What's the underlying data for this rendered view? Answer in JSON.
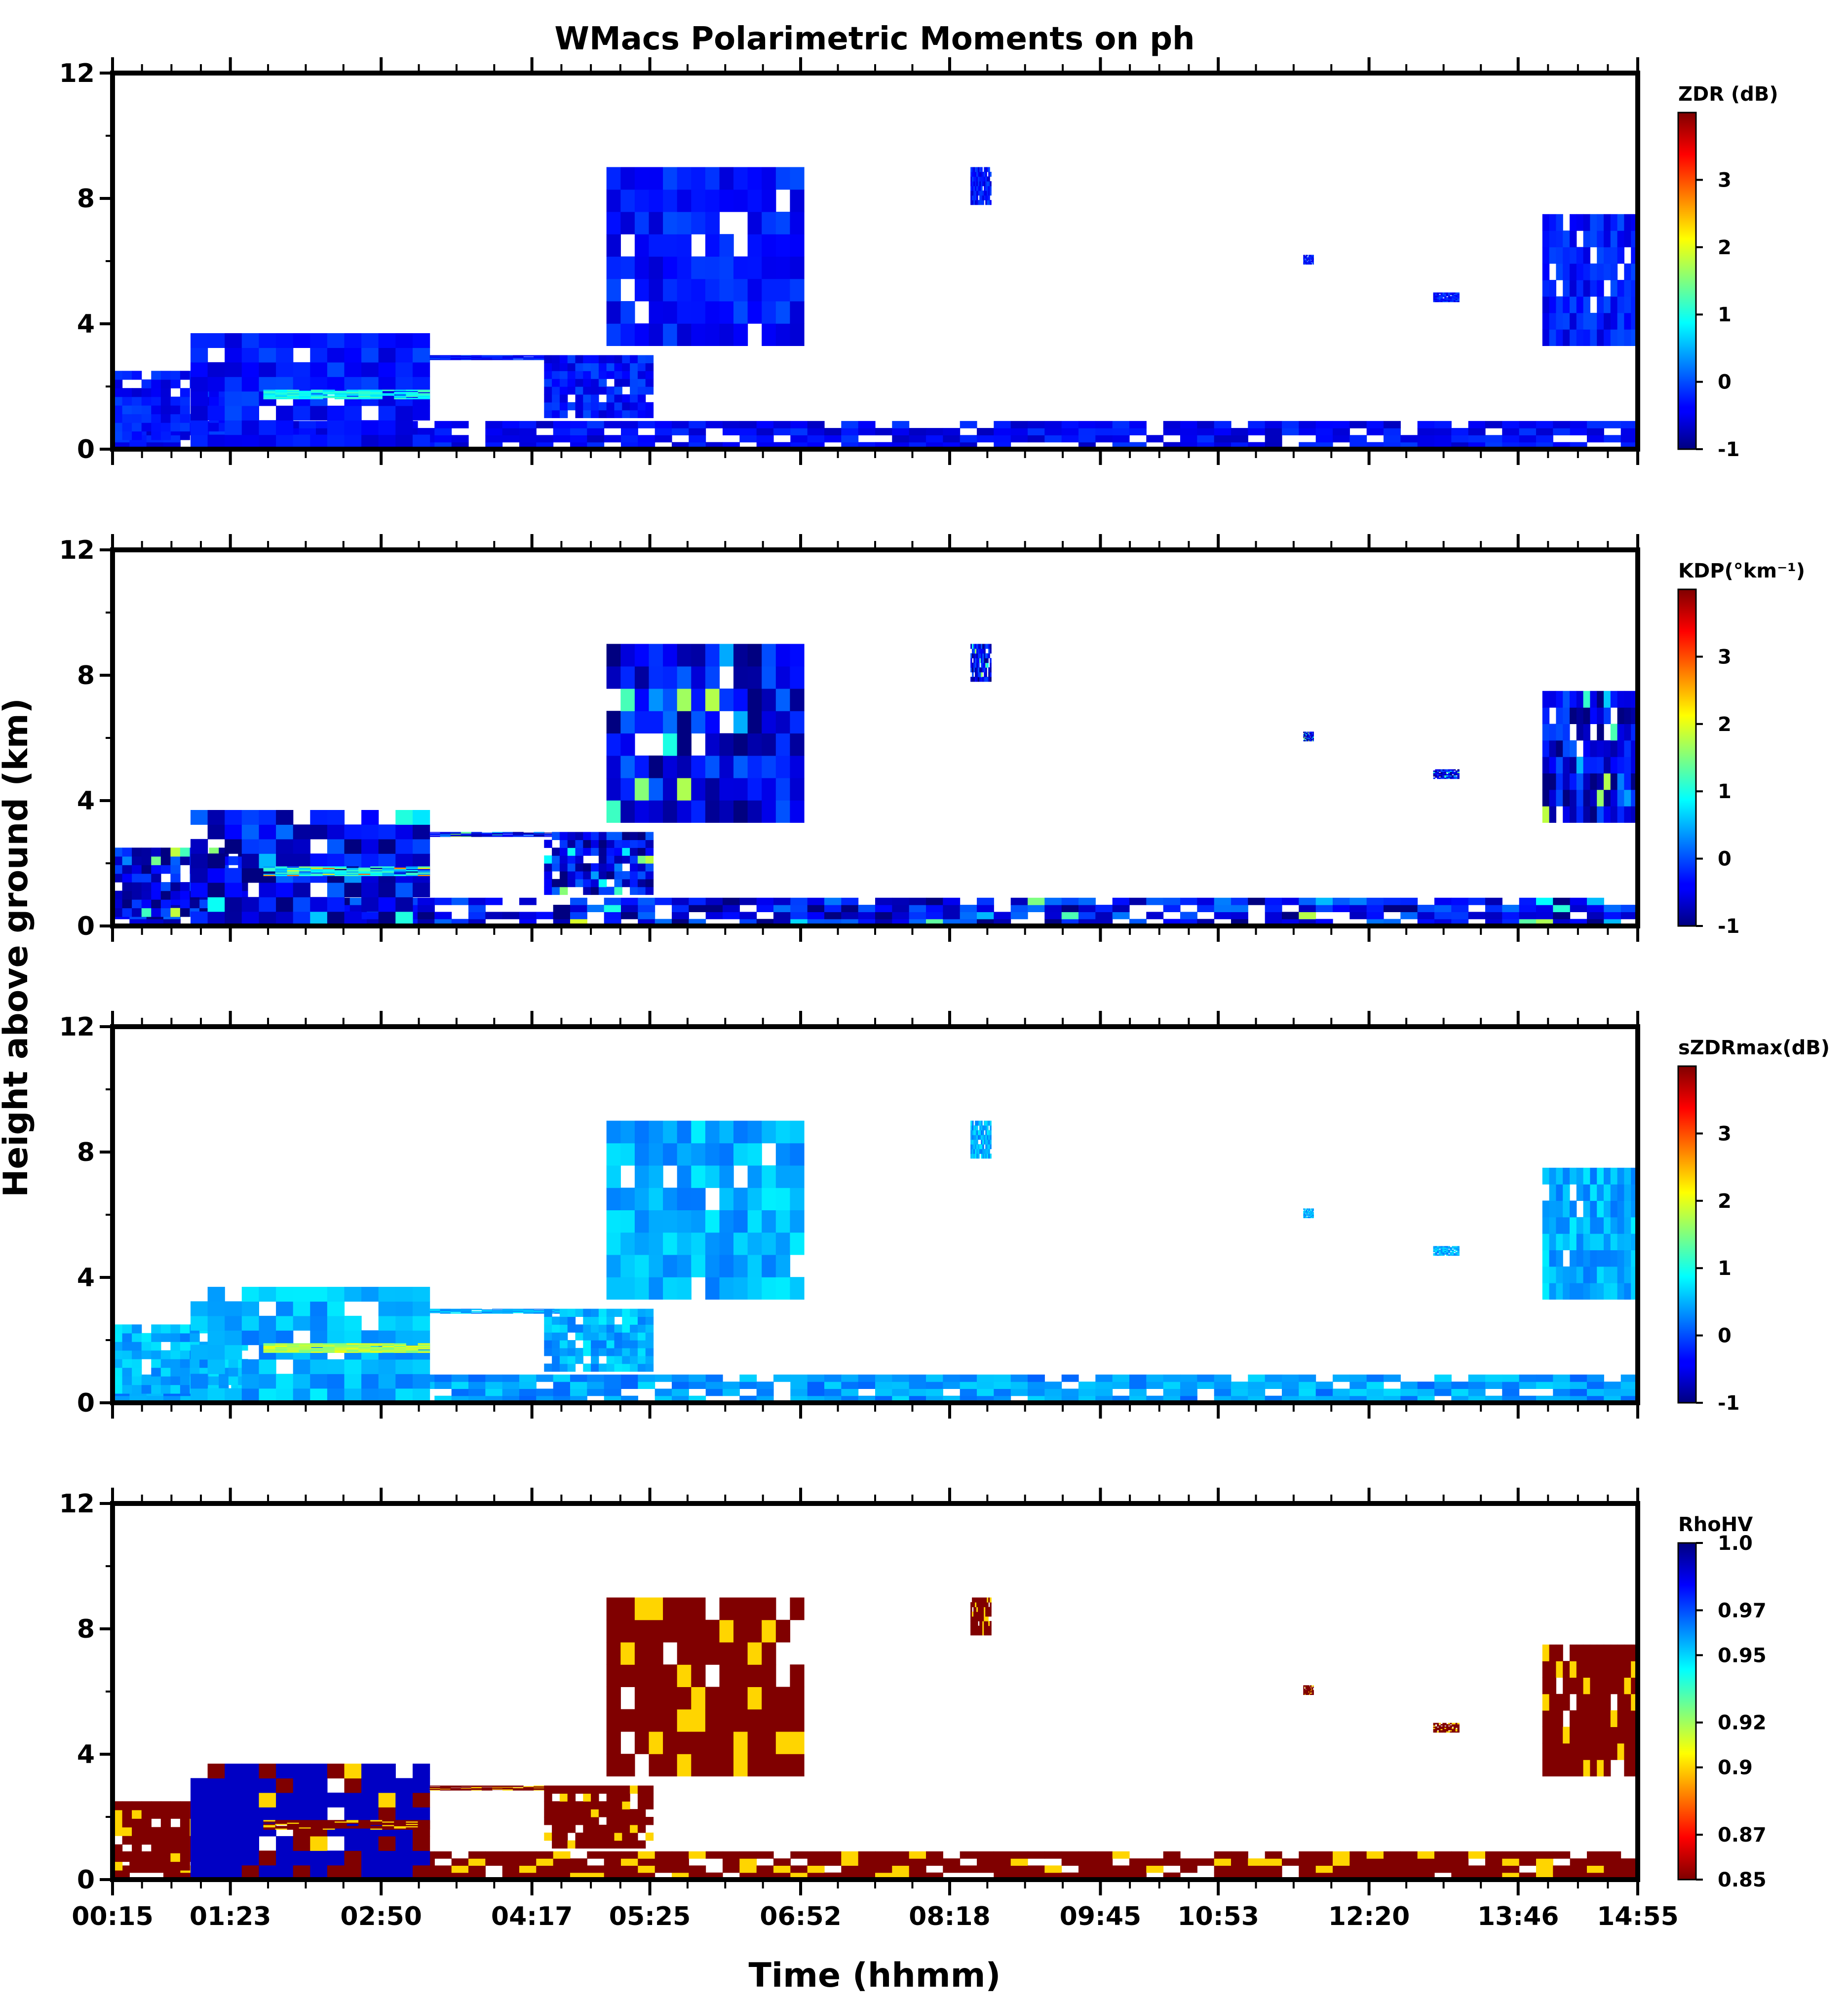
{
  "chart_data": {
    "type": "heatmap",
    "title": "WMacs Polarimetric Moments on ph",
    "xlabel": "Time (hhmm)",
    "ylabel": "Height above ground (km)",
    "x_tick_labels": [
      "00:15",
      "01:23",
      "02:50",
      "04:17",
      "05:25",
      "06:52",
      "08:18",
      "09:45",
      "10:53",
      "12:20",
      "13:46",
      "14:55"
    ],
    "x_tick_hours": [
      0.25,
      1.383,
      2.833,
      4.283,
      5.417,
      6.867,
      8.3,
      9.75,
      10.883,
      12.333,
      13.767,
      14.917
    ],
    "xlim_hours": [
      0.25,
      14.917
    ],
    "ylim_km": [
      0,
      12
    ],
    "y_ticks_km": [
      0,
      4,
      8,
      12
    ],
    "y_tick_labels": [
      "0",
      "4",
      "8",
      "12"
    ],
    "panels": [
      {
        "name": "zdr",
        "colorbar_label": "ZDR (dB)",
        "clim": [
          -1,
          4
        ],
        "colorbar_ticks": [
          -1,
          0,
          1,
          2,
          3
        ],
        "colorbar_tick_labels": [
          "-1",
          "0",
          "1",
          "2",
          "3"
        ],
        "typical_value": -0.3,
        "low_level_value": -0.4
      },
      {
        "name": "kdp",
        "colorbar_label": "KDP(°km⁻¹)",
        "clim": [
          -1,
          4
        ],
        "colorbar_ticks": [
          -1,
          0,
          1,
          2,
          3
        ],
        "colorbar_tick_labels": [
          "-1",
          "0",
          "1",
          "2",
          "3"
        ],
        "typical_value": -0.4,
        "low_level_value": -0.3
      },
      {
        "name": "szdrmax",
        "colorbar_label": "sZDRmax(dB)",
        "clim": [
          -1,
          4
        ],
        "colorbar_ticks": [
          -1,
          0,
          1,
          2,
          3
        ],
        "colorbar_tick_labels": [
          "-1",
          "0",
          "1",
          "2",
          "3"
        ],
        "typical_value": 0.5,
        "low_level_value": 0.4
      },
      {
        "name": "rhohv",
        "colorbar_label": "RhoHV",
        "clim": [
          0.85,
          1.0
        ],
        "colorbar_ticks": [
          0.85,
          0.87,
          0.9,
          0.92,
          0.95,
          0.97,
          1.0
        ],
        "colorbar_tick_labels": [
          "0.85",
          "0.87",
          "0.9",
          "0.92",
          "0.95",
          "0.97",
          "1.0"
        ],
        "typical_value": 0.85,
        "low_level_value": 0.85
      }
    ],
    "echo_regions": [
      {
        "id": "low-clutter",
        "t": [
          0.25,
          14.917
        ],
        "h": [
          0.0,
          0.9
        ],
        "note": "near-surface echo layer"
      },
      {
        "id": "shallow-cloud-1",
        "t": [
          0.25,
          1.55
        ],
        "h": [
          0.3,
          2.5
        ]
      },
      {
        "id": "precip-1",
        "t": [
          1.0,
          3.3
        ],
        "h": [
          0.0,
          3.7
        ]
      },
      {
        "id": "melting-layer",
        "t": [
          1.7,
          3.3
        ],
        "h": [
          1.6,
          1.9
        ],
        "note": "bright band"
      },
      {
        "id": "thin-layer",
        "t": [
          3.3,
          4.7
        ],
        "h": [
          2.85,
          3.0
        ]
      },
      {
        "id": "precip-2",
        "t": [
          4.4,
          5.45
        ],
        "h": [
          1.0,
          3.0
        ]
      },
      {
        "id": "upper-cloud-1",
        "t": [
          5.0,
          6.9
        ],
        "h": [
          3.3,
          9.0
        ]
      },
      {
        "id": "upper-cloud-2",
        "t": [
          8.5,
          8.7
        ],
        "h": [
          7.8,
          9.0
        ]
      },
      {
        "id": "small-echo-1",
        "t": [
          11.7,
          11.8
        ],
        "h": [
          5.9,
          6.2
        ]
      },
      {
        "id": "small-echo-2",
        "t": [
          12.95,
          13.2
        ],
        "h": [
          4.7,
          5.0
        ]
      },
      {
        "id": "upper-cloud-3",
        "t": [
          14.0,
          14.917
        ],
        "h": [
          3.3,
          7.5
        ]
      }
    ]
  }
}
